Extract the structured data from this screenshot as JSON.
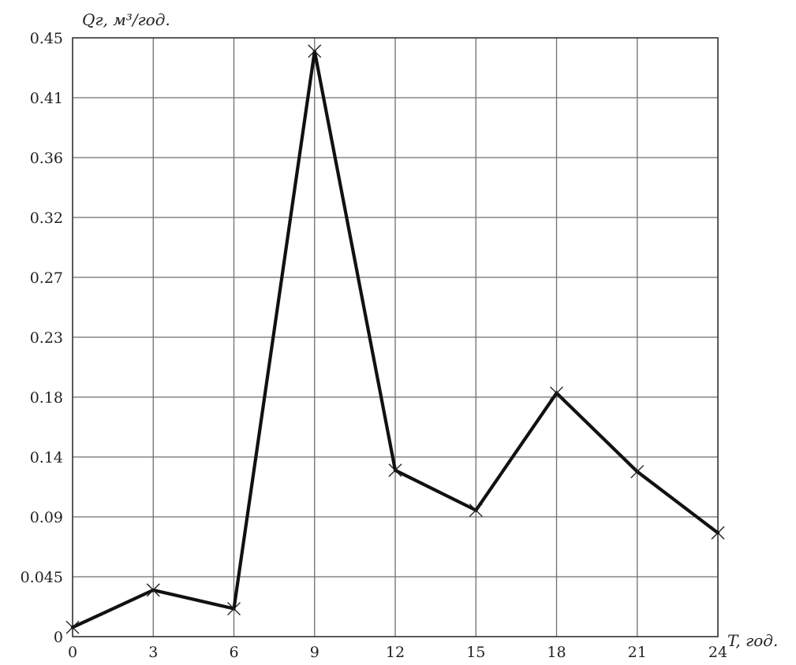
{
  "chart_data": {
    "type": "line",
    "title": "",
    "xlabel": "T, год.",
    "ylabel": "Qг, м³/год.",
    "x": [
      0,
      3,
      6,
      9,
      12,
      15,
      18,
      21,
      24
    ],
    "x_ticks": [
      "0",
      "3",
      "6",
      "9",
      "12",
      "15",
      "18",
      "21",
      "24"
    ],
    "y_ticks": [
      "0",
      "0.045",
      "0.09",
      "0.14",
      "0.18",
      "0.23",
      "0.27",
      "0.32",
      "0.36",
      "0.41",
      "0.45"
    ],
    "xlim": [
      0,
      24
    ],
    "ylim": [
      0,
      0.45
    ],
    "grid": true,
    "series": [
      {
        "values": [
          0.007,
          0.035,
          0.021,
          0.44,
          0.125,
          0.095,
          0.183,
          0.124,
          0.078
        ],
        "color": "#111111",
        "marker": "x"
      }
    ]
  }
}
